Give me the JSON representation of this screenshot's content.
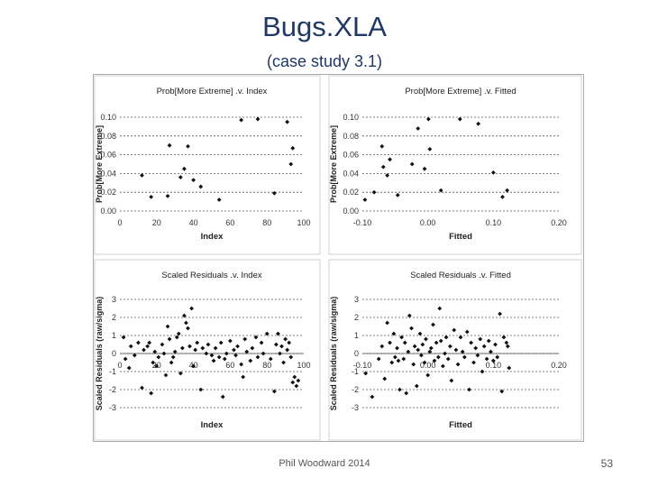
{
  "slide": {
    "title": "Bugs.XLA",
    "subtitle": "(case study 3.1)",
    "footer": "Phil Woodward 2014",
    "page_number": "53"
  },
  "chart_data": [
    {
      "type": "scatter",
      "title": "Prob[More Extreme] .v. Index",
      "xlabel": "Index",
      "ylabel": "Prob[More Extreme]",
      "xlim": [
        0,
        100
      ],
      "ylim": [
        0,
        0.1
      ],
      "xticks": [
        "0",
        "20",
        "40",
        "60",
        "80",
        "100"
      ],
      "yticks": [
        "0.00",
        "0.02",
        "0.04",
        "0.06",
        "0.08",
        "0.10"
      ],
      "grid": "horizontal dotted",
      "points": [
        [
          12,
          0.038
        ],
        [
          17,
          0.015
        ],
        [
          26,
          0.016
        ],
        [
          27,
          0.07
        ],
        [
          33,
          0.036
        ],
        [
          35,
          0.045
        ],
        [
          37,
          0.069
        ],
        [
          40,
          0.033
        ],
        [
          44,
          0.026
        ],
        [
          54,
          0.012
        ],
        [
          66,
          0.097
        ],
        [
          75,
          0.098
        ],
        [
          84,
          0.019
        ],
        [
          91,
          0.095
        ],
        [
          93,
          0.05
        ],
        [
          94,
          0.067
        ]
      ]
    },
    {
      "type": "scatter",
      "title": "Prob[More Extreme] .v. Fitted",
      "xlabel": "Fitted",
      "ylabel": "Prob[More Extreme]",
      "xlim": [
        -0.1,
        0.2
      ],
      "ylim": [
        0,
        0.1
      ],
      "xticks": [
        "-0.10",
        "0.00",
        "0.10",
        "0.20"
      ],
      "yticks": [
        "0.00",
        "0.02",
        "0.04",
        "0.06",
        "0.08",
        "0.10"
      ],
      "grid": "horizontal dotted",
      "points": [
        [
          -0.096,
          0.012
        ],
        [
          -0.082,
          0.02
        ],
        [
          -0.07,
          0.069
        ],
        [
          -0.068,
          0.047
        ],
        [
          -0.062,
          0.038
        ],
        [
          -0.058,
          0.055
        ],
        [
          -0.046,
          0.017
        ],
        [
          -0.024,
          0.05
        ],
        [
          -0.015,
          0.088
        ],
        [
          -0.005,
          0.045
        ],
        [
          0.001,
          0.098
        ],
        [
          0.003,
          0.066
        ],
        [
          0.02,
          0.022
        ],
        [
          0.049,
          0.098
        ],
        [
          0.077,
          0.093
        ],
        [
          0.1,
          0.041
        ],
        [
          0.114,
          0.015
        ],
        [
          0.121,
          0.022
        ]
      ]
    },
    {
      "type": "scatter",
      "title": "Scaled Residuals .v. Index",
      "xlabel": "Index",
      "ylabel": "Scaled Residuals (raw/sigma)",
      "xlim": [
        0,
        100
      ],
      "ylim": [
        -3,
        3
      ],
      "xticks": [
        "0",
        "20",
        "40",
        "60",
        "80",
        "100"
      ],
      "yticks": [
        "-3",
        "-2",
        "-1",
        "0",
        "1",
        "2",
        "3"
      ],
      "grid": "horizontal dotted",
      "points": [
        [
          2,
          0.9
        ],
        [
          3,
          -0.3
        ],
        [
          5,
          -0.8
        ],
        [
          6,
          0.4
        ],
        [
          8,
          -0.1
        ],
        [
          10,
          0.6
        ],
        [
          12,
          -1.9
        ],
        [
          13,
          0.2
        ],
        [
          15,
          0.4
        ],
        [
          16,
          0.6
        ],
        [
          17,
          -2.2
        ],
        [
          18,
          -0.5
        ],
        [
          19,
          0.1
        ],
        [
          20,
          -0.7
        ],
        [
          21,
          -0.2
        ],
        [
          23,
          0.5
        ],
        [
          24,
          0.0
        ],
        [
          25,
          -1.2
        ],
        [
          26,
          1.5
        ],
        [
          27,
          0.8
        ],
        [
          28,
          -0.5
        ],
        [
          29,
          -0.2
        ],
        [
          30,
          0.1
        ],
        [
          31,
          0.9
        ],
        [
          32,
          1.1
        ],
        [
          33,
          -1.1
        ],
        [
          34,
          0.3
        ],
        [
          35,
          2.1
        ],
        [
          36,
          1.7
        ],
        [
          37,
          1.4
        ],
        [
          38,
          0.4
        ],
        [
          39,
          2.5
        ],
        [
          40,
          -0.7
        ],
        [
          41,
          0.2
        ],
        [
          42,
          0.6
        ],
        [
          44,
          -2.0
        ],
        [
          45,
          0.3
        ],
        [
          47,
          0.0
        ],
        [
          48,
          0.5
        ],
        [
          50,
          -0.1
        ],
        [
          51,
          -0.4
        ],
        [
          52,
          0.3
        ],
        [
          54,
          -0.2
        ],
        [
          55,
          0.6
        ],
        [
          56,
          -2.4
        ],
        [
          57,
          -0.3
        ],
        [
          58,
          0.0
        ],
        [
          60,
          0.7
        ],
        [
          62,
          0.2
        ],
        [
          63,
          -0.1
        ],
        [
          64,
          0.4
        ],
        [
          66,
          -0.6
        ],
        [
          67,
          -1.3
        ],
        [
          68,
          0.8
        ],
        [
          69,
          0.1
        ],
        [
          71,
          -0.4
        ],
        [
          72,
          0.3
        ],
        [
          74,
          0.9
        ],
        [
          75,
          -0.2
        ],
        [
          77,
          0.6
        ],
        [
          78,
          0.0
        ],
        [
          80,
          1.1
        ],
        [
          82,
          -0.3
        ],
        [
          84,
          -2.1
        ],
        [
          85,
          0.5
        ],
        [
          86,
          1.1
        ],
        [
          87,
          0.0
        ],
        [
          88,
          0.4
        ],
        [
          89,
          -0.5
        ],
        [
          90,
          0.8
        ],
        [
          91,
          0.2
        ],
        [
          92,
          0.6
        ],
        [
          93,
          -0.2
        ],
        [
          94,
          -1.6
        ],
        [
          95,
          -1.3
        ],
        [
          96,
          -1.8
        ],
        [
          97,
          -1.5
        ]
      ]
    },
    {
      "type": "scatter",
      "title": "Scaled Residuals .v. Fitted",
      "xlabel": "Fitted",
      "ylabel": "Scaled Residuals (raw/sigma)",
      "xlim": [
        -0.1,
        0.2
      ],
      "ylim": [
        -3,
        3
      ],
      "xticks": [
        "-0.10",
        "0.00",
        "0.10",
        "0.20"
      ],
      "yticks": [
        "-3",
        "-2",
        "-1",
        "0",
        "1",
        "2",
        "3"
      ],
      "grid": "horizontal dotted",
      "points": [
        [
          -0.095,
          -1.1
        ],
        [
          -0.085,
          -2.4
        ],
        [
          -0.075,
          -0.3
        ],
        [
          -0.07,
          0.4
        ],
        [
          -0.066,
          -1.4
        ],
        [
          -0.062,
          1.7
        ],
        [
          -0.058,
          0.6
        ],
        [
          -0.055,
          -0.5
        ],
        [
          -0.052,
          1.1
        ],
        [
          -0.05,
          -0.2
        ],
        [
          -0.047,
          0.3
        ],
        [
          -0.045,
          -0.4
        ],
        [
          -0.043,
          -2.0
        ],
        [
          -0.04,
          0.9
        ],
        [
          -0.037,
          -0.3
        ],
        [
          -0.035,
          0.6
        ],
        [
          -0.033,
          -2.2
        ],
        [
          -0.03,
          0.1
        ],
        [
          -0.028,
          2.1
        ],
        [
          -0.025,
          1.4
        ],
        [
          -0.022,
          -0.6
        ],
        [
          -0.02,
          0.4
        ],
        [
          -0.017,
          -1.8
        ],
        [
          -0.015,
          0.2
        ],
        [
          -0.012,
          1.1
        ],
        [
          -0.01,
          -0.1
        ],
        [
          -0.008,
          0.5
        ],
        [
          -0.005,
          -0.5
        ],
        [
          -0.003,
          0.8
        ],
        [
          0.0,
          -1.2
        ],
        [
          0.003,
          0.1
        ],
        [
          0.005,
          0.3
        ],
        [
          0.008,
          1.6
        ],
        [
          0.01,
          -0.4
        ],
        [
          0.013,
          0.6
        ],
        [
          0.016,
          -0.2
        ],
        [
          0.018,
          2.5
        ],
        [
          0.02,
          0.7
        ],
        [
          0.023,
          -0.7
        ],
        [
          0.026,
          0.0
        ],
        [
          0.028,
          0.9
        ],
        [
          0.031,
          -0.3
        ],
        [
          0.034,
          0.4
        ],
        [
          0.036,
          -1.5
        ],
        [
          0.04,
          1.3
        ],
        [
          0.043,
          0.2
        ],
        [
          0.046,
          -0.6
        ],
        [
          0.05,
          0.9
        ],
        [
          0.053,
          0.1
        ],
        [
          0.056,
          -0.2
        ],
        [
          0.06,
          1.2
        ],
        [
          0.063,
          -2.0
        ],
        [
          0.066,
          0.6
        ],
        [
          0.07,
          -0.5
        ],
        [
          0.073,
          0.3
        ],
        [
          0.076,
          -0.1
        ],
        [
          0.08,
          0.8
        ],
        [
          0.083,
          -1.0
        ],
        [
          0.086,
          0.4
        ],
        [
          0.09,
          -0.3
        ],
        [
          0.093,
          0.7
        ],
        [
          0.096,
          0.1
        ],
        [
          0.1,
          -0.4
        ],
        [
          0.103,
          0.5
        ],
        [
          0.106,
          -0.2
        ],
        [
          0.11,
          2.2
        ],
        [
          0.113,
          -2.1
        ],
        [
          0.116,
          0.9
        ],
        [
          0.12,
          0.6
        ],
        [
          0.122,
          0.4
        ],
        [
          0.124,
          -0.8
        ]
      ]
    }
  ]
}
